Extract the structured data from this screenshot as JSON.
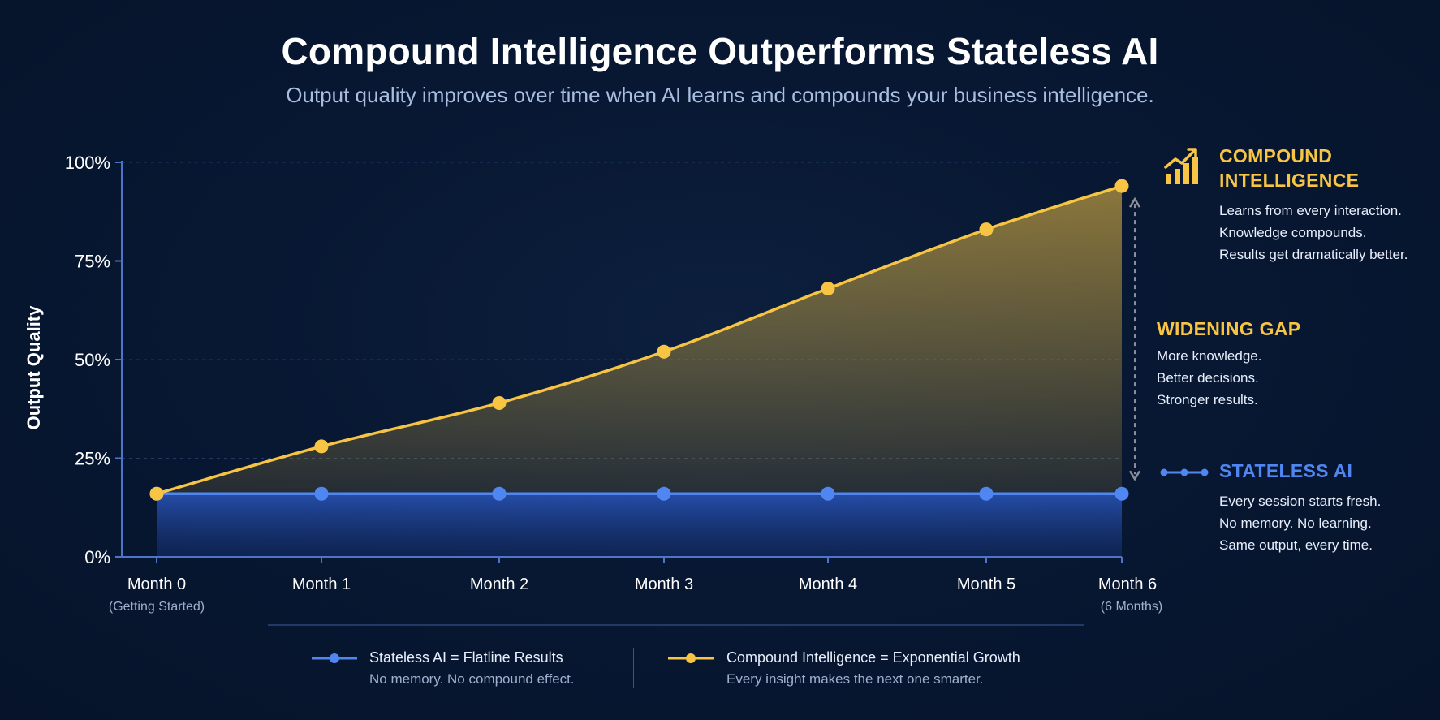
{
  "title": "Compound Intelligence Outperforms Stateless AI",
  "subtitle": "Output quality improves over time when AI learns and compounds your business intelligence.",
  "colors": {
    "compound": "#f7c543",
    "stateless": "#4f86f2",
    "background": "#081833",
    "axis": "#4f73c9"
  },
  "chart_data": {
    "type": "area",
    "categories": [
      "Month 0",
      "Month 1",
      "Month 2",
      "Month 3",
      "Month 4",
      "Month 5",
      "Month 6"
    ],
    "category_sublabels": [
      "(Getting Started)",
      "",
      "",
      "",
      "",
      "",
      "(6 Months)"
    ],
    "ylabel": "Output Quality",
    "ylim": [
      0,
      100
    ],
    "yticks": [
      0,
      25,
      50,
      75,
      100
    ],
    "ytick_labels": [
      "0%",
      "25%",
      "50%",
      "75%",
      "100%"
    ],
    "grid": true,
    "series": [
      {
        "name": "Stateless AI",
        "color": "#4f86f2",
        "values": [
          16,
          16,
          16,
          16,
          16,
          16,
          16
        ]
      },
      {
        "name": "Compound Intelligence",
        "color": "#f7c543",
        "values": [
          16,
          28,
          39,
          52,
          68,
          83,
          94
        ]
      }
    ]
  },
  "annotations": {
    "compound": {
      "icon": "growth-chart-icon",
      "title_line1": "COMPOUND",
      "title_line2": "INTELLIGENCE",
      "lines": [
        "Learns from every interaction.",
        "Knowledge compounds.",
        "Results get dramatically better."
      ]
    },
    "gap": {
      "title": "WIDENING GAP",
      "lines": [
        "More knowledge.",
        "Better decisions.",
        "Stronger results."
      ]
    },
    "stateless": {
      "icon": "flatline-icon",
      "title": "STATELESS AI",
      "lines": [
        "Every session starts fresh.",
        "No memory. No learning.",
        "Same output, every time."
      ]
    }
  },
  "legend": {
    "stateless": {
      "label": "Stateless AI = Flatline Results",
      "sub": "No memory. No compound effect."
    },
    "compound": {
      "label": "Compound Intelligence = Exponential Growth",
      "sub": "Every insight makes the next one smarter."
    }
  }
}
